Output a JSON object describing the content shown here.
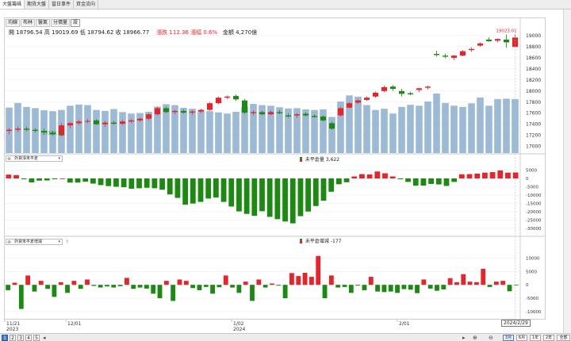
{
  "tabs": [
    {
      "label": "大盤籌碼",
      "active": true
    },
    {
      "label": "期貨大盤",
      "active": false
    },
    {
      "label": "當日事件",
      "active": false
    },
    {
      "label": "資金流向",
      "active": false
    }
  ],
  "period_buttons": [
    {
      "label": "均線",
      "active": false
    },
    {
      "label": "布林",
      "active": false
    },
    {
      "label": "醫氣",
      "active": false
    },
    {
      "label": "分價量",
      "active": false
    },
    {
      "label": "設",
      "active": true
    }
  ],
  "quote": {
    "open_label": "開",
    "open": "18796.54",
    "high_label": "高",
    "high": "19019.69",
    "low_label": "低",
    "low": "18794.62",
    "close_label": "收",
    "close": "18966.77",
    "change_label": "漲跌",
    "change": "112.36",
    "pct_label": "漲幅",
    "pct": "0.6%",
    "amount_label": "金額",
    "amount": "4,270億"
  },
  "panes": [
    {
      "selector": "外資淨未平倉",
      "legend_label": "未平倉量",
      "legend_value": "3,622"
    },
    {
      "selector": "外資未平倉增減",
      "legend_label": "未平倉增減",
      "legend_value": "-177",
      "help": "?"
    }
  ],
  "tooltip_date": "2024/2/29",
  "pages": [
    "1",
    "2",
    "3",
    "4",
    "5"
  ],
  "active_page": "1",
  "ranges": [
    "3月",
    "6月",
    "1年",
    "2年",
    "全部"
  ],
  "active_range": "3月",
  "colors": {
    "up": "#e8242a",
    "down": "#1b8a10",
    "volume": "#9cbad6",
    "axis_text": "#333333",
    "grid": "#eeeeee"
  },
  "chart_data": [
    {
      "type": "candlestick",
      "title": "",
      "x_tick_labels": [
        {
          "index": 0,
          "label": "11/21",
          "sub": "2023"
        },
        {
          "index": 7,
          "label": "12/01",
          "sub": ""
        },
        {
          "index": 26,
          "label": "1/02",
          "sub": "2024"
        },
        {
          "index": 45,
          "label": "2/01",
          "sub": ""
        }
      ],
      "y_ticks": [
        17000,
        17200,
        17400,
        17600,
        17800,
        18000,
        18200,
        18400,
        18600,
        18800,
        19000
      ],
      "ylim": [
        16880,
        19100
      ],
      "annotations": [
        {
          "label": "17333.79",
          "index": 5,
          "value": 17333.79
        },
        {
          "label": "19023.01",
          "index": 57,
          "value": 19023.01
        }
      ],
      "candles": [
        {
          "o": 17280,
          "h": 17330,
          "l": 17220,
          "c": 17300
        },
        {
          "o": 17300,
          "h": 17360,
          "l": 17260,
          "c": 17320
        },
        {
          "o": 17320,
          "h": 17360,
          "l": 17270,
          "c": 17300
        },
        {
          "o": 17300,
          "h": 17330,
          "l": 17250,
          "c": 17280
        },
        {
          "o": 17280,
          "h": 17320,
          "l": 17230,
          "c": 17250
        },
        {
          "o": 17250,
          "h": 17280,
          "l": 17190,
          "c": 17220
        },
        {
          "o": 17200,
          "h": 17420,
          "l": 17180,
          "c": 17380
        },
        {
          "o": 17380,
          "h": 17440,
          "l": 17330,
          "c": 17420
        },
        {
          "o": 17420,
          "h": 17480,
          "l": 17390,
          "c": 17450
        },
        {
          "o": 17450,
          "h": 17490,
          "l": 17420,
          "c": 17460
        },
        {
          "o": 17470,
          "h": 17490,
          "l": 17390,
          "c": 17400
        },
        {
          "o": 17400,
          "h": 17460,
          "l": 17350,
          "c": 17430
        },
        {
          "o": 17430,
          "h": 17460,
          "l": 17390,
          "c": 17410
        },
        {
          "o": 17410,
          "h": 17480,
          "l": 17380,
          "c": 17450
        },
        {
          "o": 17450,
          "h": 17500,
          "l": 17420,
          "c": 17470
        },
        {
          "o": 17470,
          "h": 17520,
          "l": 17440,
          "c": 17500
        },
        {
          "o": 17500,
          "h": 17600,
          "l": 17470,
          "c": 17580
        },
        {
          "o": 17580,
          "h": 17720,
          "l": 17560,
          "c": 17690
        },
        {
          "o": 17690,
          "h": 17720,
          "l": 17600,
          "c": 17620
        },
        {
          "o": 17620,
          "h": 17660,
          "l": 17580,
          "c": 17640
        },
        {
          "o": 17640,
          "h": 17670,
          "l": 17590,
          "c": 17610
        },
        {
          "o": 17610,
          "h": 17650,
          "l": 17570,
          "c": 17630
        },
        {
          "o": 17630,
          "h": 17680,
          "l": 17600,
          "c": 17660
        },
        {
          "o": 17660,
          "h": 17800,
          "l": 17640,
          "c": 17780
        },
        {
          "o": 17780,
          "h": 17900,
          "l": 17760,
          "c": 17880
        },
        {
          "o": 17880,
          "h": 17920,
          "l": 17850,
          "c": 17900
        },
        {
          "o": 17910,
          "h": 17940,
          "l": 17820,
          "c": 17850
        },
        {
          "o": 17830,
          "h": 17860,
          "l": 17580,
          "c": 17610
        },
        {
          "o": 17600,
          "h": 17650,
          "l": 17560,
          "c": 17620
        },
        {
          "o": 17620,
          "h": 17640,
          "l": 17560,
          "c": 17580
        },
        {
          "o": 17580,
          "h": 17650,
          "l": 17560,
          "c": 17620
        },
        {
          "o": 17620,
          "h": 17660,
          "l": 17580,
          "c": 17600
        },
        {
          "o": 17560,
          "h": 17600,
          "l": 17520,
          "c": 17540
        },
        {
          "o": 17560,
          "h": 17600,
          "l": 17520,
          "c": 17580
        },
        {
          "o": 17590,
          "h": 17620,
          "l": 17540,
          "c": 17560
        },
        {
          "o": 17550,
          "h": 17580,
          "l": 17520,
          "c": 17530
        },
        {
          "o": 17540,
          "h": 17560,
          "l": 17450,
          "c": 17470
        },
        {
          "o": 17420,
          "h": 17450,
          "l": 17300,
          "c": 17320
        },
        {
          "o": 17560,
          "h": 17710,
          "l": 17540,
          "c": 17690
        },
        {
          "o": 17700,
          "h": 17800,
          "l": 17690,
          "c": 17780
        },
        {
          "o": 17790,
          "h": 17850,
          "l": 17770,
          "c": 17830
        },
        {
          "o": 17840,
          "h": 17900,
          "l": 17820,
          "c": 17880
        },
        {
          "o": 17900,
          "h": 17990,
          "l": 17880,
          "c": 17970
        },
        {
          "o": 18000,
          "h": 18100,
          "l": 17980,
          "c": 18070
        },
        {
          "o": 18080,
          "h": 18110,
          "l": 18000,
          "c": 18040
        },
        {
          "o": 18000,
          "h": 18040,
          "l": 17900,
          "c": 17950
        },
        {
          "o": 17960,
          "h": 17990,
          "l": 17920,
          "c": 17940
        },
        {
          "o": 18020,
          "h": 18060,
          "l": 17980,
          "c": 18050
        },
        {
          "o": 18060,
          "h": 18100,
          "l": 18030,
          "c": 18080
        },
        {
          "o": 18670,
          "h": 18730,
          "l": 18620,
          "c": 18650
        },
        {
          "o": 18640,
          "h": 18680,
          "l": 18590,
          "c": 18620
        },
        {
          "o": 18600,
          "h": 18650,
          "l": 18560,
          "c": 18640
        },
        {
          "o": 18640,
          "h": 18740,
          "l": 18630,
          "c": 18720
        },
        {
          "o": 18740,
          "h": 18790,
          "l": 18710,
          "c": 18760
        },
        {
          "o": 18820,
          "h": 18880,
          "l": 18800,
          "c": 18860
        },
        {
          "o": 18930,
          "h": 18970,
          "l": 18890,
          "c": 18900
        },
        {
          "o": 18910,
          "h": 18950,
          "l": 18880,
          "c": 18940
        },
        {
          "o": 18930,
          "h": 19023,
          "l": 18780,
          "c": 18880
        },
        {
          "o": 18796,
          "h": 19020,
          "l": 18794,
          "c": 18967
        }
      ],
      "volume": [
        1500,
        1650,
        1520,
        1480,
        1410,
        1380,
        1420,
        1560,
        1600,
        1580,
        1420,
        1390,
        1450,
        1350,
        1300,
        1320,
        1360,
        1530,
        1610,
        1580,
        1490,
        1460,
        1400,
        1380,
        1340,
        1300,
        1360,
        1520,
        1620,
        1580,
        1560,
        1510,
        1470,
        1480,
        1440,
        1420,
        1440,
        1190,
        1700,
        1900,
        1860,
        1580,
        1420,
        1460,
        1300,
        1520,
        1590,
        1560,
        1700,
        1960,
        1650,
        1560,
        1520,
        1640,
        1830,
        1560,
        1780,
        1790,
        1780
      ]
    },
    {
      "type": "bar",
      "title": "外資淨未平倉",
      "legend": "未平倉量",
      "y_ticks": [
        5000,
        0,
        -5000,
        -10000,
        -15000,
        -20000,
        -25000,
        -30000
      ],
      "ylim": [
        -31000,
        10500
      ],
      "values": [
        2300,
        2000,
        -500,
        -2400,
        -1300,
        -1200,
        -500,
        0,
        -2500,
        -2500,
        -1900,
        -3100,
        -4000,
        -4600,
        -5000,
        -5300,
        -6200,
        -5900,
        -5600,
        -5900,
        -6800,
        -9600,
        -11700,
        -15800,
        -15100,
        -14100,
        -12100,
        -11500,
        -14100,
        -16900,
        -19800,
        -21300,
        -22500,
        -19700,
        -23100,
        -24500,
        -25900,
        -27000,
        -22700,
        -19900,
        -16600,
        -13400,
        -8000,
        -3500,
        -2300,
        1200,
        2600,
        2400,
        4200,
        3100,
        1200,
        -500,
        -2100,
        -4300,
        -4300,
        -3300,
        -3600,
        -4500,
        -2100,
        2500,
        2600,
        2900,
        3500,
        3800,
        4800,
        3500,
        3600
      ]
    },
    {
      "type": "bar",
      "title": "外資未平倉增減",
      "legend": "未平倉增減",
      "y_ticks": [
        10000,
        5000,
        0,
        -5000,
        -10000
      ],
      "ylim": [
        -11500,
        12500
      ],
      "values": [
        -2000,
        800,
        -9000,
        3500,
        -2500,
        1500,
        -1500,
        -4500,
        1000,
        -3000,
        1500,
        -1500,
        2000,
        -400,
        -1000,
        -600,
        -1000,
        -500,
        2600,
        -1500,
        -1000,
        -1400,
        -3300,
        -5000,
        1500,
        -6000,
        2000,
        1500,
        -1200,
        -2000,
        -800,
        -3300,
        -900,
        3500,
        -1000,
        -3000,
        1200,
        -6000,
        2000,
        -1000,
        500,
        -300,
        -5000,
        4400,
        3300,
        4500,
        3000,
        10800,
        -5000,
        3500,
        -1000,
        -800,
        -3000,
        -300,
        -2000,
        3000,
        -2500,
        -2700,
        -2500,
        -3000,
        -1600,
        -1800,
        -3100,
        2000,
        -1400,
        -2200,
        -1700,
        2500,
        1000,
        4000,
        1200,
        1000,
        6000,
        -800,
        1200,
        1500,
        -2400,
        -177
      ]
    }
  ]
}
